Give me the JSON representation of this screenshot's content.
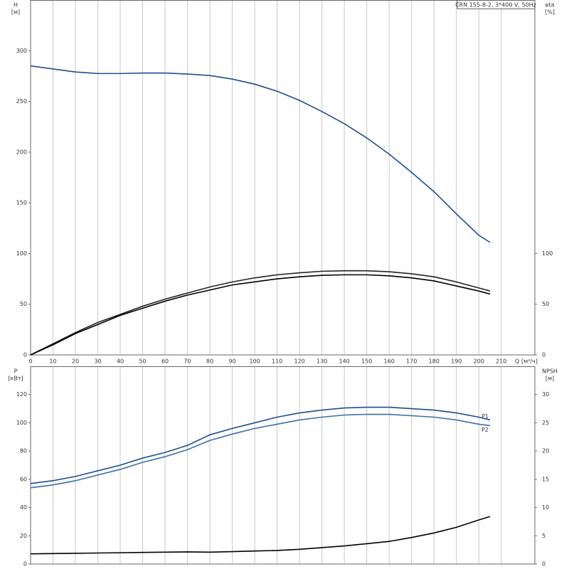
{
  "chart_data": [
    {
      "type": "line",
      "title": "CRN 155-8-2, 3*400 V, 50Hz",
      "x_label": "Q",
      "x_unit": "[м³/ч]",
      "y_label": "H",
      "y_unit": "[м]",
      "y2_label": "eta",
      "y2_unit": "[%]",
      "x": [
        0,
        10,
        20,
        30,
        40,
        50,
        60,
        70,
        80,
        90,
        100,
        110,
        120,
        130,
        140,
        150,
        160,
        170,
        180,
        190,
        200,
        205
      ],
      "xlim": [
        0,
        225
      ],
      "xticks": [
        0,
        10,
        20,
        30,
        40,
        50,
        60,
        70,
        80,
        90,
        100,
        110,
        120,
        130,
        140,
        150,
        160,
        170,
        180,
        190,
        200,
        210
      ],
      "ylim": [
        0,
        350
      ],
      "yticks": [
        0,
        50,
        100,
        150,
        200,
        250,
        300
      ],
      "y2lim": [
        0,
        350
      ],
      "y2ticks": [
        0,
        50,
        100
      ],
      "grid": "x",
      "series": [
        {
          "color": "#1f4e8c",
          "values": [
            285,
            282,
            279,
            277.5,
            277.5,
            278,
            278,
            277,
            275.5,
            272,
            267,
            260,
            251,
            240,
            228,
            214,
            198,
            180,
            161,
            139,
            118,
            111
          ]
        },
        {
          "color": "#222222",
          "axis": "y2",
          "values": [
            0,
            11,
            22,
            32,
            40,
            48,
            55,
            61,
            67,
            72,
            76,
            79,
            81,
            82.5,
            83,
            83,
            82,
            80,
            77,
            72,
            66,
            63
          ]
        },
        {
          "color": "#000000",
          "axis": "y2",
          "values": [
            0,
            10,
            21,
            30,
            39,
            46,
            53,
            59,
            64,
            69,
            72,
            75,
            77,
            78.5,
            79,
            79,
            78,
            76,
            73,
            68,
            63,
            60
          ]
        }
      ]
    },
    {
      "type": "line",
      "y_label": "P",
      "y_unit": "[кВт]",
      "y2_label": "NPSH",
      "y2_unit": "[м]",
      "x": [
        0,
        10,
        20,
        30,
        40,
        50,
        60,
        70,
        80,
        90,
        100,
        110,
        120,
        130,
        140,
        150,
        160,
        170,
        180,
        190,
        200,
        205
      ],
      "xlim": [
        0,
        225
      ],
      "ylim": [
        0,
        140
      ],
      "yticks": [
        0,
        20,
        40,
        60,
        80,
        100,
        120
      ],
      "y2lim": [
        0,
        35
      ],
      "y2ticks": [
        0,
        5,
        10,
        15,
        20,
        25,
        30
      ],
      "series": [
        {
          "name": "P1",
          "color": "#1f4e8c",
          "values": [
            57,
            59,
            62,
            66,
            70,
            75,
            79,
            84,
            91.5,
            96,
            100,
            104,
            107,
            109,
            110.5,
            111,
            111,
            110,
            109,
            107,
            104,
            102
          ]
        },
        {
          "name": "P2",
          "color": "#3b6ea8",
          "values": [
            54,
            56,
            59,
            63,
            67,
            72,
            76,
            81,
            87.5,
            92,
            96,
            99,
            102,
            104,
            105.5,
            106,
            106,
            105,
            104,
            102,
            99,
            98
          ]
        },
        {
          "color": "#000000",
          "axis": "y2",
          "values": [
            1.8,
            1.85,
            1.9,
            1.95,
            2.0,
            2.05,
            2.1,
            2.15,
            2.1,
            2.2,
            2.3,
            2.4,
            2.6,
            2.9,
            3.2,
            3.6,
            4.0,
            4.7,
            5.5,
            6.5,
            7.8,
            8.4
          ]
        }
      ]
    }
  ]
}
